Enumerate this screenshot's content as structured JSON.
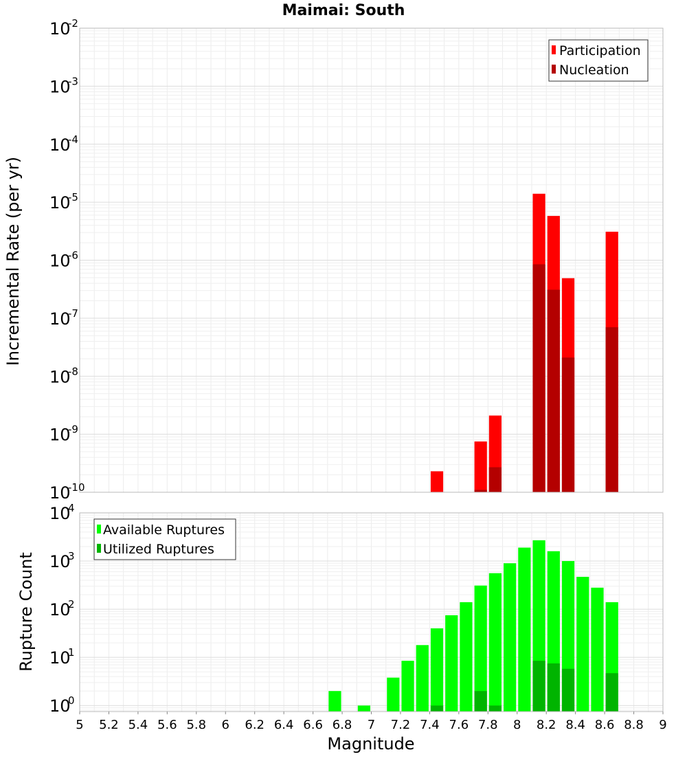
{
  "chart_data": [
    {
      "type": "bar",
      "title": "Maimai: South",
      "ylabel": "Incremental Rate (per yr)",
      "xlabel": "",
      "x_range": [
        5,
        9
      ],
      "y_scale": "log",
      "y_range": [
        1e-10,
        0.01
      ],
      "y_ticks": [
        {
          "base": "10",
          "exp": "-10"
        },
        {
          "base": "10",
          "exp": "-9"
        },
        {
          "base": "10",
          "exp": "-8"
        },
        {
          "base": "10",
          "exp": "-7"
        },
        {
          "base": "10",
          "exp": "-6"
        },
        {
          "base": "10",
          "exp": "-5"
        },
        {
          "base": "10",
          "exp": "-4"
        },
        {
          "base": "10",
          "exp": "-3"
        },
        {
          "base": "10",
          "exp": "-2"
        }
      ],
      "grid": true,
      "legend_position": "top-right",
      "series": [
        {
          "name": "Participation",
          "color": "#ff0000",
          "points": [
            [
              7.45,
              2.3e-10
            ],
            [
              7.75,
              7.5e-10
            ],
            [
              7.85,
              2.1e-09
            ],
            [
              8.15,
              1.4e-05
            ],
            [
              8.25,
              5.8e-06
            ],
            [
              8.35,
              4.9e-07
            ],
            [
              8.65,
              3.1e-06
            ]
          ]
        },
        {
          "name": "Nucleation",
          "color": "#b40000",
          "points": [
            [
              7.75,
              1.1e-10
            ],
            [
              7.85,
              2.7e-10
            ],
            [
              8.15,
              8.5e-07
            ],
            [
              8.25,
              3.1e-07
            ],
            [
              8.35,
              2.1e-08
            ],
            [
              8.65,
              7e-08
            ]
          ]
        }
      ]
    },
    {
      "type": "bar",
      "xlabel": "Magnitude",
      "ylabel": "Rupture Count",
      "x_range": [
        5,
        9
      ],
      "x_ticks": [
        "5",
        "5.2",
        "5.4",
        "5.6",
        "5.8",
        "6",
        "6.2",
        "6.4",
        "6.6",
        "6.8",
        "7",
        "7.2",
        "7.4",
        "7.6",
        "7.8",
        "8",
        "8.2",
        "8.4",
        "8.6",
        "8.8",
        "9"
      ],
      "y_scale": "log",
      "y_range": [
        0.75,
        10000
      ],
      "y_ticks": [
        {
          "base": "10",
          "exp": "0"
        },
        {
          "base": "10",
          "exp": "1"
        },
        {
          "base": "10",
          "exp": "2"
        },
        {
          "base": "10",
          "exp": "3"
        },
        {
          "base": "10",
          "exp": "4"
        }
      ],
      "grid": true,
      "legend_position": "top-left",
      "series": [
        {
          "name": "Available Ruptures",
          "color": "#00ff00",
          "points": [
            [
              6.75,
              2
            ],
            [
              6.95,
              1
            ],
            [
              7.15,
              3.8
            ],
            [
              7.25,
              8.5
            ],
            [
              7.35,
              18
            ],
            [
              7.45,
              40
            ],
            [
              7.55,
              75
            ],
            [
              7.65,
              140
            ],
            [
              7.75,
              310
            ],
            [
              7.85,
              560
            ],
            [
              7.95,
              900
            ],
            [
              8.05,
              1900
            ],
            [
              8.15,
              2700
            ],
            [
              8.25,
              1600
            ],
            [
              8.35,
              1000
            ],
            [
              8.45,
              470
            ],
            [
              8.55,
              280
            ],
            [
              8.65,
              140
            ]
          ]
        },
        {
          "name": "Utilized Ruptures",
          "color": "#00b400",
          "points": [
            [
              7.45,
              1
            ],
            [
              7.75,
              2
            ],
            [
              7.85,
              1
            ],
            [
              8.15,
              8.5
            ],
            [
              8.25,
              7.5
            ],
            [
              8.35,
              5.8
            ],
            [
              8.65,
              4.7
            ]
          ]
        }
      ]
    }
  ]
}
